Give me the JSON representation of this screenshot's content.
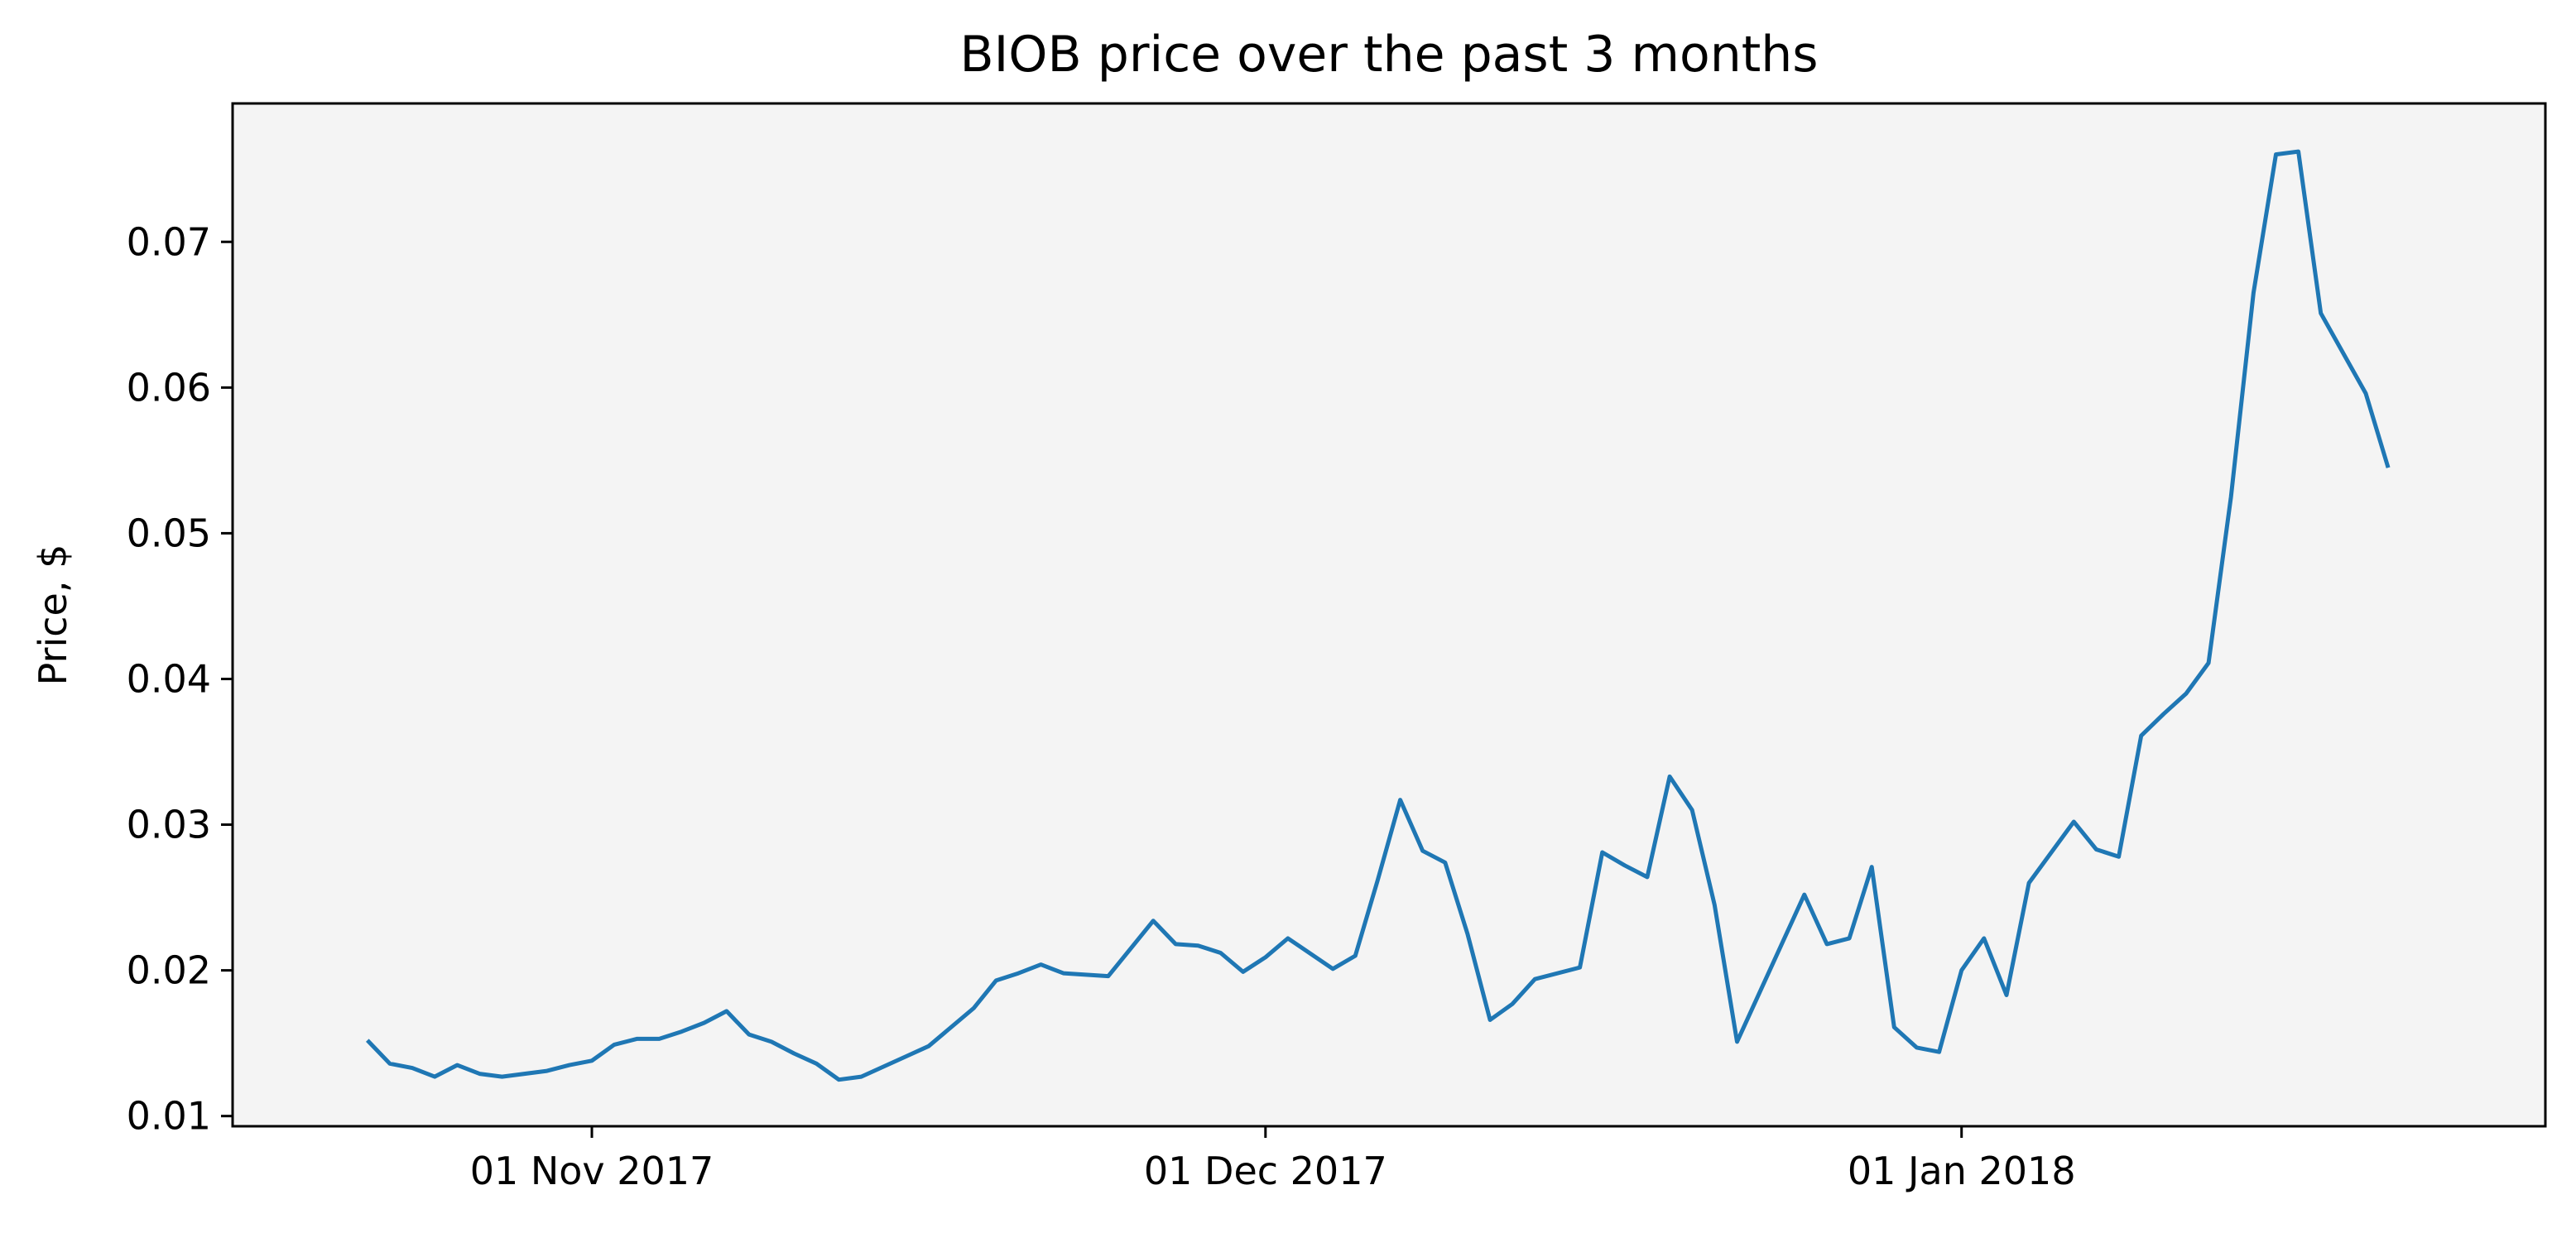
{
  "chart_data": {
    "type": "line",
    "title": "BIOB price over the past 3 months",
    "xlabel": "",
    "ylabel": "Price, $",
    "xlim": [
      "2017-10-16",
      "2018-01-27"
    ],
    "ylim": [
      0.0093,
      0.0795
    ],
    "background": "#f4f4f4",
    "grid": false,
    "x_ticks": [
      {
        "date": "2017-11-01",
        "label": "01 Nov 2017"
      },
      {
        "date": "2017-12-01",
        "label": "01 Dec 2017"
      },
      {
        "date": "2018-01-01",
        "label": "01 Jan 2018"
      }
    ],
    "y_ticks": [
      {
        "value": 0.01,
        "label": "0.01"
      },
      {
        "value": 0.02,
        "label": "0.02"
      },
      {
        "value": 0.03,
        "label": "0.03"
      },
      {
        "value": 0.04,
        "label": "0.04"
      },
      {
        "value": 0.05,
        "label": "0.05"
      },
      {
        "value": 0.06,
        "label": "0.06"
      },
      {
        "value": 0.07,
        "label": "0.07"
      }
    ],
    "series": [
      {
        "color": "#1f77b4",
        "points": [
          [
            "2017-10-22",
            0.0152
          ],
          [
            "2017-10-23",
            0.0136
          ],
          [
            "2017-10-24",
            0.0133
          ],
          [
            "2017-10-25",
            0.0127
          ],
          [
            "2017-10-26",
            0.0135
          ],
          [
            "2017-10-27",
            0.0129
          ],
          [
            "2017-10-28",
            0.0127
          ],
          [
            "2017-10-30",
            0.0131
          ],
          [
            "2017-10-31",
            0.0135
          ],
          [
            "2017-11-01",
            0.0138
          ],
          [
            "2017-11-02",
            0.0149
          ],
          [
            "2017-11-03",
            0.0153
          ],
          [
            "2017-11-04",
            0.0153
          ],
          [
            "2017-11-05",
            0.0158
          ],
          [
            "2017-11-06",
            0.0164
          ],
          [
            "2017-11-07",
            0.0172
          ],
          [
            "2017-11-08",
            0.0156
          ],
          [
            "2017-11-09",
            0.0151
          ],
          [
            "2017-11-10",
            0.0143
          ],
          [
            "2017-11-11",
            0.0136
          ],
          [
            "2017-11-12",
            0.0125
          ],
          [
            "2017-11-13",
            0.0127
          ],
          [
            "2017-11-15",
            0.0141
          ],
          [
            "2017-11-16",
            0.0148
          ],
          [
            "2017-11-18",
            0.0174
          ],
          [
            "2017-11-19",
            0.0193
          ],
          [
            "2017-11-20",
            0.0198
          ],
          [
            "2017-11-21",
            0.0204
          ],
          [
            "2017-11-22",
            0.0198
          ],
          [
            "2017-11-24",
            0.0196
          ],
          [
            "2017-11-26",
            0.0234
          ],
          [
            "2017-11-27",
            0.0218
          ],
          [
            "2017-11-28",
            0.0217
          ],
          [
            "2017-11-29",
            0.0212
          ],
          [
            "2017-11-30",
            0.0199
          ],
          [
            "2017-12-01",
            0.0209
          ],
          [
            "2017-12-02",
            0.0222
          ],
          [
            "2017-12-04",
            0.0201
          ],
          [
            "2017-12-05",
            0.021
          ],
          [
            "2017-12-06",
            0.0262
          ],
          [
            "2017-12-07",
            0.0317
          ],
          [
            "2017-12-08",
            0.0282
          ],
          [
            "2017-12-09",
            0.0274
          ],
          [
            "2017-12-10",
            0.0225
          ],
          [
            "2017-12-11",
            0.0166
          ],
          [
            "2017-12-12",
            0.0177
          ],
          [
            "2017-12-13",
            0.0194
          ],
          [
            "2017-12-15",
            0.0202
          ],
          [
            "2017-12-16",
            0.0281
          ],
          [
            "2017-12-17",
            0.0272
          ],
          [
            "2017-12-18",
            0.0264
          ],
          [
            "2017-12-19",
            0.0333
          ],
          [
            "2017-12-20",
            0.031
          ],
          [
            "2017-12-21",
            0.0245
          ],
          [
            "2017-12-22",
            0.0151
          ],
          [
            "2017-12-25",
            0.0252
          ],
          [
            "2017-12-26",
            0.0218
          ],
          [
            "2017-12-27",
            0.0222
          ],
          [
            "2017-12-28",
            0.0271
          ],
          [
            "2017-12-29",
            0.0161
          ],
          [
            "2017-12-30",
            0.0147
          ],
          [
            "2017-12-31",
            0.0144
          ],
          [
            "2018-01-01",
            0.02
          ],
          [
            "2018-01-02",
            0.0222
          ],
          [
            "2018-01-03",
            0.0183
          ],
          [
            "2018-01-04",
            0.026
          ],
          [
            "2018-01-06",
            0.0302
          ],
          [
            "2018-01-07",
            0.0283
          ],
          [
            "2018-01-08",
            0.0278
          ],
          [
            "2018-01-09",
            0.0361
          ],
          [
            "2018-01-10",
            0.0376
          ],
          [
            "2018-01-11",
            0.039
          ],
          [
            "2018-01-12",
            0.0411
          ],
          [
            "2018-01-13",
            0.0525
          ],
          [
            "2018-01-14",
            0.0665
          ],
          [
            "2018-01-15",
            0.076
          ],
          [
            "2018-01-16",
            0.0762
          ],
          [
            "2018-01-17",
            0.0651
          ],
          [
            "2018-01-19",
            0.0596
          ],
          [
            "2018-01-20",
            0.0545
          ]
        ]
      }
    ]
  }
}
